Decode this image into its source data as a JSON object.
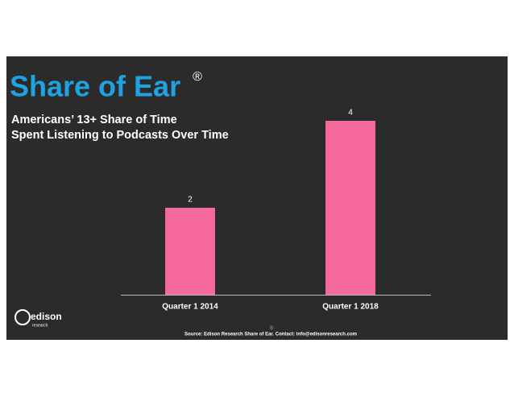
{
  "chart_data": {
    "type": "bar",
    "title": "Share of Ear",
    "title_mark": "®",
    "subtitle": [
      "Americans’ 13+ Share of Time",
      "Spent Listening to Podcasts Over Time"
    ],
    "categories": [
      "Quarter 1 2014",
      "Quarter 1 2018"
    ],
    "values": [
      2,
      4
    ],
    "color": "#f5689b",
    "source": "Source: Edison Research Share of Ear. Contact: info@edisonresearch.com",
    "logo": [
      "edison",
      "research"
    ],
    "footer_mark": "®"
  }
}
